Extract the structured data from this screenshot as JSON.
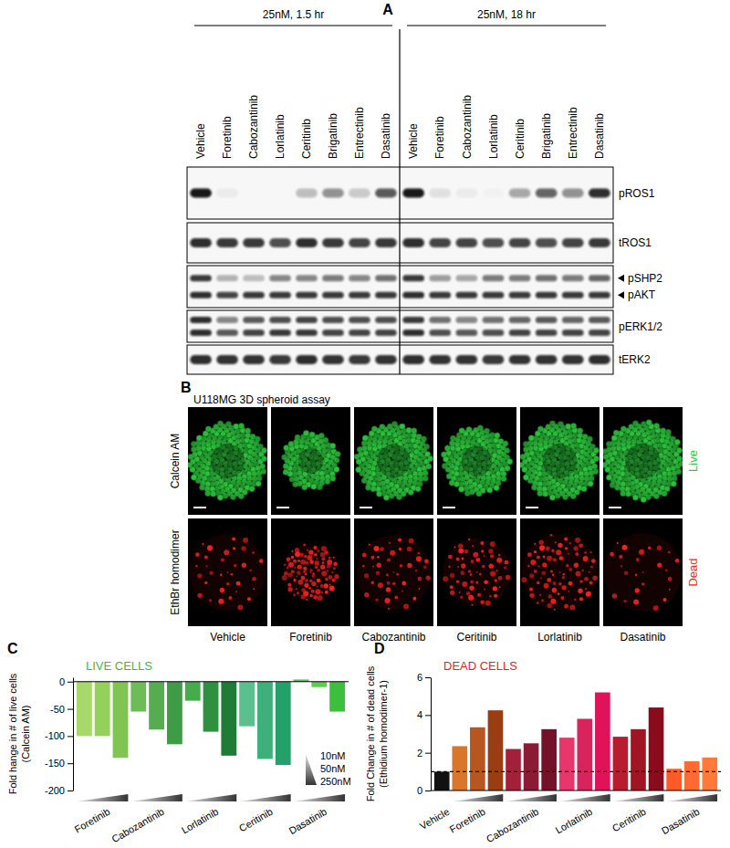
{
  "blot": {
    "panel_label": "A",
    "conditions": [
      "25nM, 1.5 hr",
      "25nM, 18 hr"
    ],
    "lanes": [
      "Vehicle",
      "Foretinib",
      "Cabozantinib",
      "Lorlatinib",
      "Ceritinib",
      "Brigatinib",
      "Entrectinib",
      "Dasatinib"
    ],
    "rows": [
      {
        "labels": [
          "pROS1"
        ],
        "bands": [
          [
            1,
            0.05,
            0,
            0,
            0.25,
            0.45,
            0.2,
            0.7,
            1,
            0.1,
            0.05,
            0.02,
            0.35,
            0.65,
            0.45,
            0.9
          ]
        ]
      },
      {
        "labels": [
          "tROS1"
        ],
        "bands": [
          [
            0.9,
            0.85,
            0.85,
            0.75,
            0.9,
            0.85,
            0.8,
            0.85,
            0.9,
            0.8,
            0.8,
            0.75,
            0.8,
            0.75,
            0.8,
            0.85
          ]
        ]
      },
      {
        "labels": [
          "pSHP2",
          "pAKT"
        ],
        "bands": [
          [
            0.85,
            0.3,
            0.25,
            0.5,
            0.5,
            0.55,
            0.5,
            0.6,
            0.85,
            0.4,
            0.35,
            0.55,
            0.55,
            0.6,
            0.55,
            0.65
          ],
          [
            0.9,
            0.8,
            0.85,
            0.85,
            0.85,
            0.85,
            0.85,
            0.85,
            0.9,
            0.85,
            0.85,
            0.85,
            0.85,
            0.85,
            0.85,
            0.85
          ]
        ]
      },
      {
        "labels": [
          "pERK1/2"
        ],
        "bands": [
          [
            0.9,
            0.5,
            0.7,
            0.75,
            0.8,
            0.75,
            0.75,
            0.75,
            0.85,
            0.6,
            0.5,
            0.6,
            0.65,
            0.7,
            0.65,
            0.7
          ],
          [
            0.9,
            0.7,
            0.8,
            0.85,
            0.85,
            0.8,
            0.8,
            0.8,
            0.9,
            0.75,
            0.7,
            0.75,
            0.8,
            0.8,
            0.8,
            0.8
          ]
        ]
      },
      {
        "labels": [
          "tERK2"
        ],
        "bands": [
          [
            0.9,
            0.88,
            0.88,
            0.85,
            0.9,
            0.88,
            0.85,
            0.88,
            0.9,
            0.88,
            0.88,
            0.85,
            0.88,
            0.88,
            0.88,
            0.9
          ]
        ]
      }
    ]
  },
  "images": {
    "panel_label": "B",
    "title": "U118MG 3D spheroid assay",
    "rows": [
      {
        "stain": "Calcein AM",
        "state": "Live",
        "color": "#2fc73f"
      },
      {
        "stain": "EthBr homodimer",
        "state": "Dead",
        "color": "#ff2020"
      }
    ],
    "treatments": [
      "Vehicle",
      "Foretinib",
      "Cabozantinib",
      "Ceritinib",
      "Lorlatinib",
      "Dasatinib"
    ]
  },
  "chart_data": [
    {
      "type": "bar",
      "panel_label": "C",
      "title": "LIVE CELLS",
      "y_label": [
        "Fold hange in # of live cells",
        "(Calcein AM)"
      ],
      "categories": [
        null,
        "Foretinib",
        null,
        null,
        "Cabozantinib",
        null,
        null,
        "Lorlatinib",
        null,
        null,
        "Ceritinib",
        null,
        null,
        "Dasatinib",
        null
      ],
      "values": [
        -100,
        -100,
        -140,
        -55,
        -88,
        -115,
        -35,
        -92,
        -136,
        -82,
        -142,
        -153,
        4,
        -10,
        -55
      ],
      "colors": [
        "#a6d96a",
        "#93d05c",
        "#80c552",
        "#6cbd58",
        "#55ad4f",
        "#3f9b45",
        "#46ab4c",
        "#2f913f",
        "#1f7c36",
        "#5cc08e",
        "#3eb07a",
        "#24a06a",
        "#4cca4a",
        "#5ad04a",
        "#3cbf3c"
      ],
      "ylim": [
        -200,
        8
      ],
      "yticks": [
        -200,
        -150,
        -100,
        -50,
        0
      ],
      "concentrations": [
        "10nM",
        "50nM",
        "250nM"
      ]
    },
    {
      "type": "bar",
      "panel_label": "D",
      "title": "DEAD CELLS",
      "y_label": [
        "Fold Change in # of dead cells",
        "(Ethidium homodimer-1)"
      ],
      "categories": [
        "Vehicle",
        null,
        "Foretinib",
        null,
        null,
        "Cabozantinib",
        null,
        null,
        "Lorlatinib",
        null,
        null,
        "Ceritinib",
        null,
        null,
        "Dasatinib",
        null
      ],
      "values": [
        1,
        2.35,
        3.35,
        4.25,
        2.2,
        2.5,
        3.25,
        2.8,
        3.8,
        5.2,
        2.85,
        3.25,
        4.4,
        1.15,
        1.55,
        1.75
      ],
      "colors": [
        "#111111",
        "#d9762b",
        "#b8561f",
        "#9a3d12",
        "#a3203a",
        "#8c1a33",
        "#731229",
        "#e8356b",
        "#d8245c",
        "#e0125a",
        "#b81c2e",
        "#a01424",
        "#8a0c1c",
        "#ff5a28",
        "#ff6a30",
        "#ff7a3a"
      ],
      "ylim": [
        0,
        6
      ],
      "yticks": [
        0,
        2,
        4,
        6
      ],
      "baseline": 1
    }
  ]
}
